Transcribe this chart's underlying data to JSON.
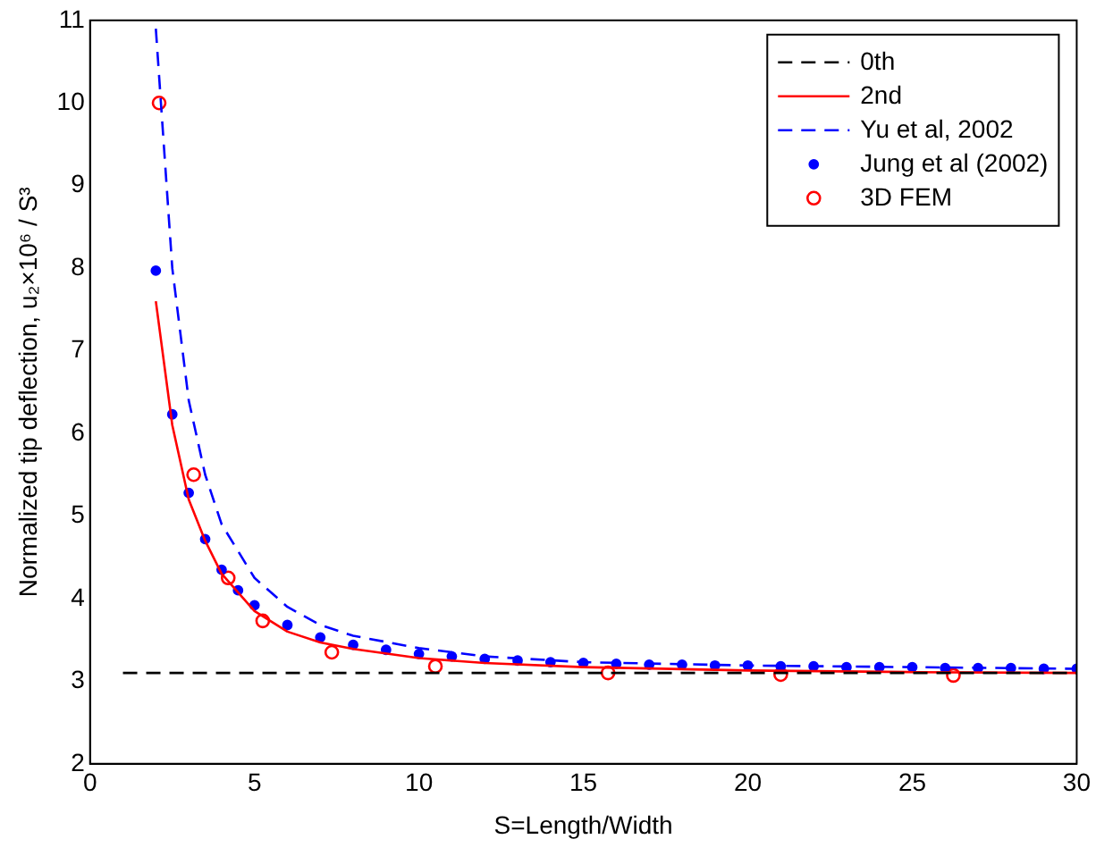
{
  "chart_data": {
    "type": "line",
    "xlabel": "S=Length/Width",
    "ylabel": "Normalized tip deflection, u₂×10⁶ / S³",
    "xlim": [
      0,
      30
    ],
    "xticks": [
      0,
      5,
      10,
      15,
      20,
      25,
      30
    ],
    "ylim": [
      2,
      11
    ],
    "yticks": [
      2,
      3,
      4,
      5,
      6,
      7,
      8,
      9,
      10,
      11
    ],
    "grid": false,
    "legend": "top right",
    "series": [
      {
        "name": "0th",
        "color": "#000000",
        "line_style": "dashed",
        "marker": "none",
        "x": [
          1,
          30
        ],
        "values": [
          3.1,
          3.1
        ]
      },
      {
        "name": "2nd",
        "color": "#ff0000",
        "line_style": "solid",
        "marker": "none",
        "x": [
          2,
          2.5,
          3,
          3.5,
          4,
          5,
          6,
          7,
          8,
          10,
          12,
          15,
          20,
          25,
          30
        ],
        "values": [
          7.6,
          6.1,
          5.2,
          4.7,
          4.3,
          3.85,
          3.6,
          3.47,
          3.39,
          3.28,
          3.22,
          3.17,
          3.13,
          3.11,
          3.1
        ]
      },
      {
        "name": "Yu et al, 2002",
        "color": "#0000ff",
        "line_style": "dashed",
        "marker": "none",
        "x": [
          2,
          2.5,
          3,
          3.5,
          4,
          5,
          6,
          7,
          8,
          10,
          12,
          15,
          20,
          25,
          30
        ],
        "values": [
          10.9,
          8.0,
          6.4,
          5.5,
          4.9,
          4.25,
          3.9,
          3.68,
          3.55,
          3.4,
          3.3,
          3.23,
          3.19,
          3.17,
          3.15
        ]
      },
      {
        "name": "Jung et al (2002)",
        "type": "scatter",
        "color": "#0000ff",
        "marker": "circle",
        "x": [
          2,
          2.5,
          3,
          3.5,
          4,
          4.5,
          5,
          6,
          7,
          8,
          9,
          10,
          11,
          12,
          13,
          14,
          15,
          16,
          17,
          18,
          19,
          20,
          21,
          22,
          23,
          24,
          25,
          26,
          27,
          28,
          29,
          30
        ],
        "values": [
          7.97,
          6.23,
          5.28,
          4.72,
          4.35,
          4.1,
          3.92,
          3.68,
          3.53,
          3.44,
          3.38,
          3.33,
          3.3,
          3.27,
          3.25,
          3.23,
          3.22,
          3.21,
          3.2,
          3.2,
          3.19,
          3.19,
          3.18,
          3.18,
          3.17,
          3.17,
          3.17,
          3.16,
          3.16,
          3.16,
          3.15,
          3.15
        ]
      },
      {
        "name": "3D FEM",
        "type": "scatter",
        "color": "#ff0000",
        "marker": "circle",
        "x": [
          2.1,
          3.15,
          4.2,
          5.25,
          7.35,
          10.5,
          15.75,
          21,
          26.25
        ],
        "values": [
          10.0,
          5.5,
          4.25,
          3.73,
          3.35,
          3.18,
          3.1,
          3.08,
          3.07
        ]
      }
    ]
  }
}
